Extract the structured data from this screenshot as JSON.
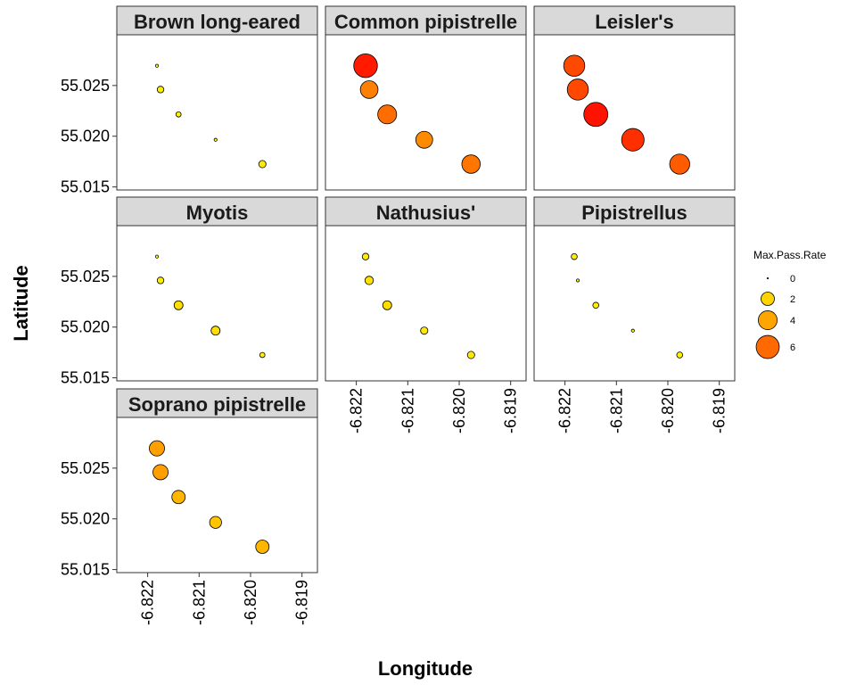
{
  "chart_data": {
    "type": "scatter",
    "xlabel": "Longitude",
    "ylabel": "Latitude",
    "xlim": [
      -6.8226,
      -6.8187
    ],
    "ylim": [
      55.0147,
      55.03
    ],
    "x_ticks": [
      -6.822,
      -6.821,
      -6.82,
      -6.819
    ],
    "x_tick_labels": [
      "-6.822",
      "-6.821",
      "-6.820",
      "-6.819"
    ],
    "y_ticks": [
      55.015,
      55.02,
      55.025
    ],
    "y_tick_labels": [
      "55.015",
      "55.020",
      "55.025"
    ],
    "grid": false,
    "legend": {
      "title": "Max.Pass.Rate",
      "placement": "right",
      "entries": [
        {
          "label": "0",
          "value": 0,
          "color": "#FFFF33"
        },
        {
          "label": "2",
          "value": 2,
          "color": "#FFD400"
        },
        {
          "label": "4",
          "value": 4,
          "color": "#FFA500"
        },
        {
          "label": "6",
          "value": 6,
          "color": "#FF6A00"
        }
      ]
    },
    "size_range": [
      0,
      7
    ],
    "color_scale": {
      "low": "#FFFF00",
      "high": "#FF0000"
    },
    "points_xy": [
      {
        "x": -6.82182,
        "y": 55.02695
      },
      {
        "x": -6.82175,
        "y": 55.0246
      },
      {
        "x": -6.8214,
        "y": 55.02215
      },
      {
        "x": -6.82068,
        "y": 55.01965
      },
      {
        "x": -6.81977,
        "y": 55.01725
      }
    ],
    "panels": [
      {
        "name": "Brown long-eared",
        "values": [
          0.1,
          0.5,
          0.3,
          0.1,
          0.6
        ]
      },
      {
        "name": "Common pipistrelle",
        "values": [
          6.3,
          3.5,
          4.0,
          3.2,
          3.8
        ]
      },
      {
        "name": "Leisler's",
        "values": [
          5.0,
          5.0,
          6.5,
          5.7,
          4.5
        ]
      },
      {
        "name": "Myotis",
        "values": [
          0.1,
          0.5,
          0.9,
          0.9,
          0.3
        ]
      },
      {
        "name": "Nathusius'",
        "values": [
          0.5,
          0.8,
          0.9,
          0.6,
          0.6
        ]
      },
      {
        "name": "Pipistrellus",
        "values": [
          0.4,
          0.1,
          0.4,
          0.1,
          0.4
        ]
      },
      {
        "name": "Soprano pipistrelle",
        "values": [
          2.6,
          2.6,
          2.0,
          1.6,
          2.0
        ]
      }
    ]
  }
}
